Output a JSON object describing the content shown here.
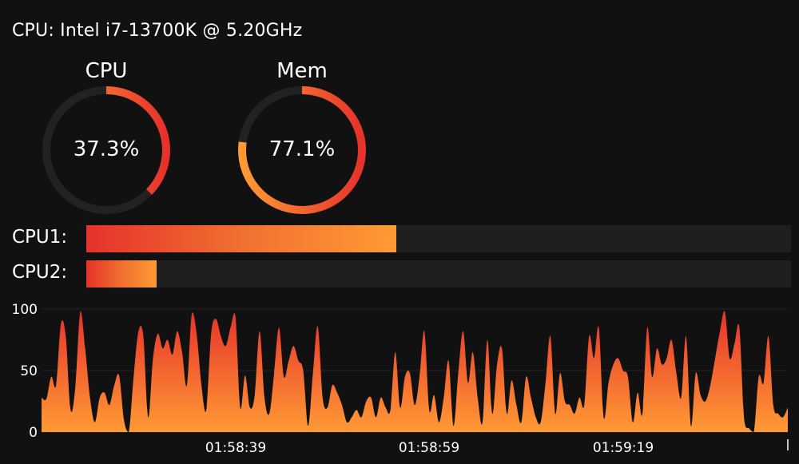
{
  "header": {
    "title": "CPU: Intel i7-13700K @ 5.20GHz"
  },
  "gauges": [
    {
      "label": "CPU",
      "value_text": "37.3%",
      "value": 37.3
    },
    {
      "label": "Mem",
      "value_text": "77.1%",
      "value": 77.1
    }
  ],
  "bars": [
    {
      "label": "CPU1:",
      "value": 44
    },
    {
      "label": "CPU2:",
      "value": 10
    }
  ],
  "colors": {
    "background": "#111111",
    "track": "#222222",
    "accent_start": "#e6322b",
    "accent_end": "#ff9a35"
  },
  "chart_data": {
    "type": "area",
    "title": "",
    "xlabel": "",
    "ylabel": "",
    "ylim": [
      0,
      100
    ],
    "yticks": [
      0,
      50,
      100
    ],
    "xtick_labels": [
      "01:58:39",
      "01:58:59",
      "01:59:19"
    ],
    "grid": true,
    "values": [
      28,
      27,
      45,
      38,
      88,
      78,
      18,
      38,
      98,
      68,
      28,
      8,
      28,
      32,
      22,
      38,
      46,
      10,
      0,
      45,
      82,
      78,
      12,
      60,
      80,
      68,
      75,
      63,
      82,
      65,
      38,
      96,
      80,
      38,
      18,
      80,
      92,
      78,
      70,
      85,
      95,
      20,
      46,
      20,
      30,
      82,
      28,
      15,
      48,
      85,
      45,
      58,
      70,
      58,
      50,
      5,
      48,
      86,
      28,
      20,
      38,
      32,
      22,
      8,
      12,
      18,
      12,
      25,
      28,
      12,
      28,
      20,
      18,
      65,
      20,
      45,
      48,
      22,
      45,
      82,
      18,
      30,
      8,
      28,
      58,
      5,
      48,
      82,
      40,
      65,
      28,
      8,
      75,
      15,
      55,
      68,
      15,
      42,
      22,
      8,
      45,
      28,
      12,
      8,
      40,
      78,
      15,
      48,
      25,
      22,
      15,
      28,
      22,
      78,
      60,
      85,
      12,
      40,
      55,
      60,
      50,
      45,
      8,
      32,
      15,
      85,
      45,
      68,
      55,
      60,
      75,
      48,
      28,
      78,
      5,
      48,
      30,
      25,
      38,
      60,
      82,
      98,
      60,
      72,
      85,
      10,
      3,
      0,
      45,
      40,
      78,
      22,
      15,
      12,
      20
    ]
  }
}
